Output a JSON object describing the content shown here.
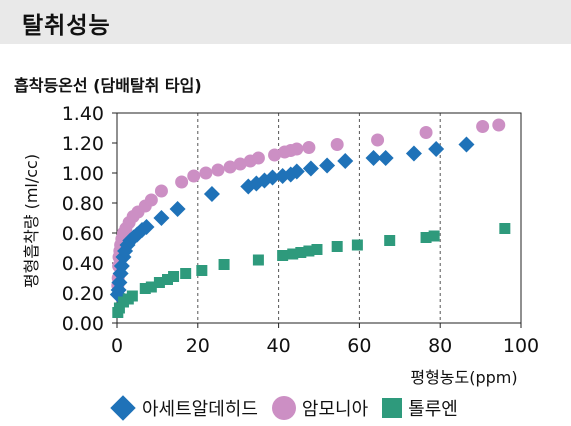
{
  "header": {
    "title": "탈취성능"
  },
  "colors": {
    "acetaldehyde": "#1f72b8",
    "ammonia": "#cc8fc4",
    "toluene": "#2e9a7c",
    "header_bg": "#e9e9e9"
  },
  "chart_data": {
    "type": "scatter",
    "title": "흡착등온선 (담배탈취 타입)",
    "xlabel": "평형농도(ppm)",
    "ylabel": "평형흡착량 (ml/cc)",
    "xlim": [
      0,
      100
    ],
    "ylim": [
      0,
      1.4
    ],
    "xticks": [
      0,
      20,
      40,
      60,
      80,
      100
    ],
    "yticks": [
      "0.00",
      "0.20",
      "0.40",
      "0.60",
      "0.80",
      "1.00",
      "1.20",
      "1.40"
    ],
    "grid": "vertical dashed",
    "legend": "bottom",
    "series": [
      {
        "name": "아세트알데히드",
        "marker": "diamond",
        "color": "#1f72b8",
        "points": [
          [
            0.2,
            0.19
          ],
          [
            0.4,
            0.22
          ],
          [
            0.6,
            0.27
          ],
          [
            0.9,
            0.33
          ],
          [
            1.2,
            0.38
          ],
          [
            1.6,
            0.44
          ],
          [
            2.0,
            0.48
          ],
          [
            2.6,
            0.52
          ],
          [
            3.3,
            0.55
          ],
          [
            4.1,
            0.57
          ],
          [
            5.0,
            0.59
          ],
          [
            6.2,
            0.62
          ],
          [
            7.3,
            0.64
          ],
          [
            11.0,
            0.7
          ],
          [
            15.0,
            0.76
          ],
          [
            23.5,
            0.86
          ],
          [
            32.5,
            0.91
          ],
          [
            34.5,
            0.93
          ],
          [
            36.5,
            0.95
          ],
          [
            38.5,
            0.97
          ],
          [
            41.0,
            0.98
          ],
          [
            43.0,
            0.99
          ],
          [
            44.5,
            1.01
          ],
          [
            48.0,
            1.03
          ],
          [
            52.0,
            1.05
          ],
          [
            56.5,
            1.08
          ],
          [
            63.5,
            1.1
          ],
          [
            66.5,
            1.1
          ],
          [
            73.5,
            1.13
          ],
          [
            79.0,
            1.16
          ],
          [
            86.5,
            1.19
          ]
        ]
      },
      {
        "name": "암모니아",
        "marker": "circle",
        "color": "#cc8fc4",
        "points": [
          [
            0.2,
            0.25
          ],
          [
            0.3,
            0.3
          ],
          [
            0.4,
            0.38
          ],
          [
            0.5,
            0.44
          ],
          [
            0.7,
            0.48
          ],
          [
            0.9,
            0.52
          ],
          [
            1.2,
            0.56
          ],
          [
            1.6,
            0.6
          ],
          [
            2.2,
            0.63
          ],
          [
            3.0,
            0.67
          ],
          [
            4.0,
            0.71
          ],
          [
            5.2,
            0.74
          ],
          [
            7.0,
            0.78
          ],
          [
            8.5,
            0.82
          ],
          [
            11.0,
            0.88
          ],
          [
            16.0,
            0.94
          ],
          [
            19.0,
            0.98
          ],
          [
            22.0,
            1.0
          ],
          [
            25.0,
            1.02
          ],
          [
            28.0,
            1.04
          ],
          [
            30.5,
            1.06
          ],
          [
            33.0,
            1.08
          ],
          [
            35.0,
            1.1
          ],
          [
            39.0,
            1.12
          ],
          [
            41.5,
            1.14
          ],
          [
            43.0,
            1.15
          ],
          [
            44.5,
            1.16
          ],
          [
            47.5,
            1.17
          ],
          [
            54.5,
            1.19
          ],
          [
            64.5,
            1.22
          ],
          [
            76.5,
            1.27
          ],
          [
            90.5,
            1.31
          ],
          [
            94.5,
            1.32
          ]
        ]
      },
      {
        "name": "톨루엔",
        "marker": "square",
        "color": "#2e9a7c",
        "points": [
          [
            0.2,
            0.07
          ],
          [
            0.6,
            0.1
          ],
          [
            1.6,
            0.14
          ],
          [
            2.8,
            0.16
          ],
          [
            3.8,
            0.18
          ],
          [
            7.0,
            0.23
          ],
          [
            8.5,
            0.24
          ],
          [
            10.5,
            0.27
          ],
          [
            12.5,
            0.29
          ],
          [
            14.0,
            0.31
          ],
          [
            17.0,
            0.33
          ],
          [
            21.0,
            0.35
          ],
          [
            26.5,
            0.39
          ],
          [
            35.0,
            0.42
          ],
          [
            41.0,
            0.45
          ],
          [
            43.5,
            0.46
          ],
          [
            45.5,
            0.47
          ],
          [
            47.5,
            0.48
          ],
          [
            49.5,
            0.49
          ],
          [
            54.5,
            0.51
          ],
          [
            59.5,
            0.52
          ],
          [
            67.5,
            0.55
          ],
          [
            76.5,
            0.57
          ],
          [
            78.5,
            0.58
          ],
          [
            96.0,
            0.63
          ]
        ]
      }
    ]
  }
}
